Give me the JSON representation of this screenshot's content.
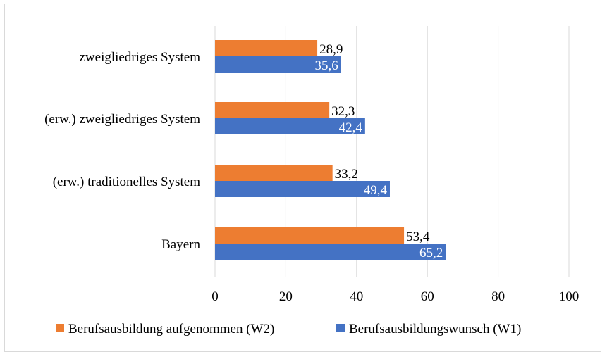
{
  "chart_data": {
    "type": "bar",
    "orientation": "horizontal",
    "categories": [
      "zweigliedriges System",
      "(erw.) zweigliedriges System",
      "(erw.) traditionelles System",
      "Bayern"
    ],
    "series": [
      {
        "name": "Berufsausbildung aufgenommen (W2)",
        "color": "#ed7d31",
        "values": [
          28.9,
          32.3,
          33.2,
          53.4
        ],
        "labels": [
          "28,9",
          "32,3",
          "33,2",
          "53,4"
        ]
      },
      {
        "name": "Berufsausbildungswunsch (W1)",
        "color": "#4472c4",
        "values": [
          35.6,
          42.4,
          49.4,
          65.2
        ],
        "labels": [
          "35,6",
          "42,4",
          "49,4",
          "65,2"
        ]
      }
    ],
    "xlim": [
      0,
      100
    ],
    "xticks": [
      0,
      20,
      40,
      60,
      80,
      100
    ],
    "xtick_labels": [
      "0",
      "20",
      "40",
      "60",
      "80",
      "100"
    ],
    "grid": true,
    "legend_position": "bottom"
  }
}
